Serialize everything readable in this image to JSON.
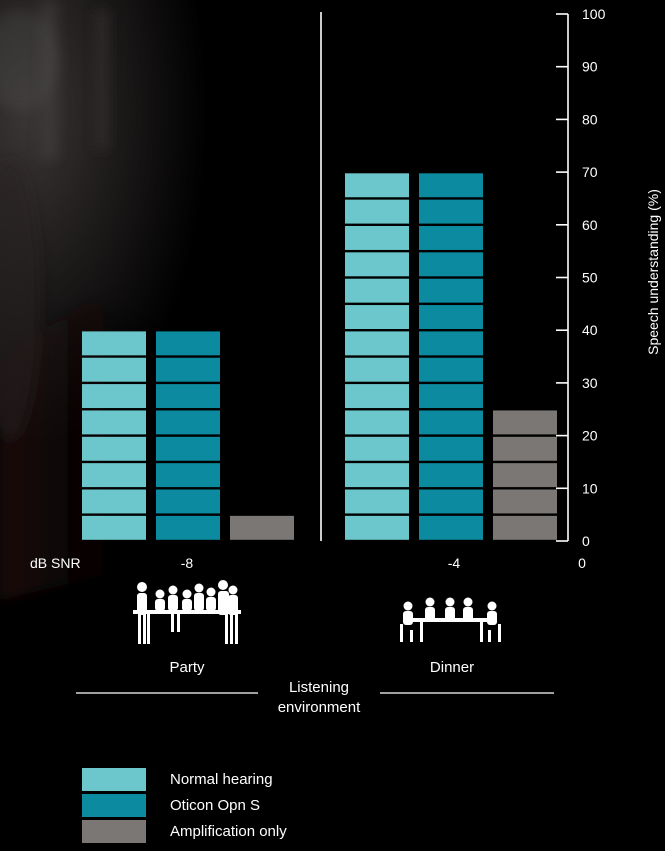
{
  "colors": {
    "normal_hearing": "#6cc7cc",
    "oticon": "#0b8aa0",
    "amplification": "#7a7774",
    "axis": "#ffffff",
    "background": "#000000"
  },
  "chart_data": {
    "type": "bar",
    "ylabel": "Speech understanding (%)",
    "ylim": [
      0,
      100
    ],
    "yticks": [
      0,
      10,
      20,
      30,
      40,
      50,
      60,
      70,
      80,
      90,
      100
    ],
    "xaxis_label": "dB SNR",
    "x_tick_labels": [
      "-8",
      "-4",
      "0"
    ],
    "categories": [
      "Party",
      "Dinner"
    ],
    "series": [
      {
        "name": "Normal hearing",
        "values": [
          40,
          70
        ]
      },
      {
        "name": "Oticon Opn S",
        "values": [
          40,
          70
        ]
      },
      {
        "name": "Amplification only",
        "values": [
          5,
          25
        ]
      }
    ],
    "segment_size": 5,
    "grid": false,
    "legend_position": "bottom-left"
  },
  "environment_label": "Listening environment",
  "environment_label_line1": "Listening",
  "environment_label_line2": "environment",
  "icons": [
    "party-icon",
    "dinner-icon"
  ],
  "legend": [
    {
      "label": "Normal hearing",
      "color_key": "normal_hearing"
    },
    {
      "label": "Oticon Opn S",
      "color_key": "oticon"
    },
    {
      "label": "Amplification only",
      "color_key": "amplification"
    }
  ]
}
